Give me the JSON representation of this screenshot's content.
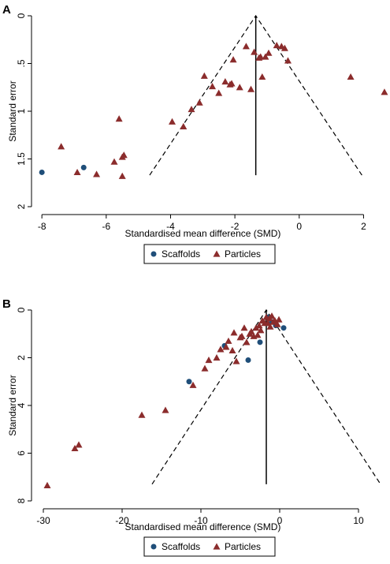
{
  "chart_data": [
    {
      "type": "scatter",
      "panel_label": "A",
      "xlabel": "Standardised mean difference (SMD)",
      "ylabel": "Standard error",
      "xlim": [
        -8.2,
        2.7
      ],
      "ylim": [
        0,
        2
      ],
      "y_inverted": true,
      "x_ticks": [
        -8,
        -6,
        -4,
        -2,
        0,
        2
      ],
      "y_ticks": [
        0,
        0.5,
        1,
        1.5,
        2
      ],
      "y_tick_labels": [
        "0",
        ".5",
        "1",
        "1.5",
        "2"
      ],
      "grid": false,
      "legend_position": "bottom",
      "pooled_estimate": -1.35,
      "funnel": {
        "apex_se": 0,
        "base_se": 1.67,
        "left_x_at_base": -4.65,
        "right_x_at_base": 1.95
      },
      "series": [
        {
          "name": "Scaffolds",
          "color": "#1f4e79",
          "marker": "circle",
          "points": [
            [
              -8.0,
              1.64
            ],
            [
              -6.7,
              1.59
            ]
          ]
        },
        {
          "name": "Particles",
          "color": "#8b2c2c",
          "marker": "triangle",
          "points": [
            [
              -7.4,
              1.37
            ],
            [
              -6.9,
              1.64
            ],
            [
              -6.3,
              1.66
            ],
            [
              -5.75,
              1.53
            ],
            [
              -5.6,
              1.08
            ],
            [
              -5.5,
              1.68
            ],
            [
              -5.45,
              1.46
            ],
            [
              -5.5,
              1.48
            ],
            [
              -3.95,
              1.11
            ],
            [
              -3.6,
              1.16
            ],
            [
              -3.35,
              0.98
            ],
            [
              -3.1,
              0.91
            ],
            [
              -2.95,
              0.63
            ],
            [
              -2.7,
              0.74
            ],
            [
              -2.5,
              0.81
            ],
            [
              -2.3,
              0.69
            ],
            [
              -2.15,
              0.72
            ],
            [
              -2.1,
              0.71
            ],
            [
              -2.05,
              0.46
            ],
            [
              -1.85,
              0.75
            ],
            [
              -1.65,
              0.32
            ],
            [
              -1.5,
              0.77
            ],
            [
              -1.4,
              0.38
            ],
            [
              -1.25,
              0.44
            ],
            [
              -1.2,
              0.43
            ],
            [
              -1.15,
              0.64
            ],
            [
              -1.05,
              0.43
            ],
            [
              -0.95,
              0.39
            ],
            [
              -0.7,
              0.31
            ],
            [
              -0.55,
              0.32
            ],
            [
              -0.45,
              0.34
            ],
            [
              -0.35,
              0.47
            ],
            [
              1.6,
              0.64
            ],
            [
              2.65,
              0.8
            ]
          ]
        }
      ]
    },
    {
      "type": "scatter",
      "panel_label": "B",
      "xlabel": "Standardised mean difference (SMD)",
      "ylabel": "Standard error",
      "xlim": [
        -31,
        13.5
      ],
      "ylim": [
        0,
        8
      ],
      "y_inverted": true,
      "x_ticks": [
        -30,
        -20,
        -10,
        0,
        10
      ],
      "y_ticks": [
        0,
        2,
        4,
        6,
        8
      ],
      "y_tick_labels": [
        "0",
        "2",
        "4",
        "6",
        "8"
      ],
      "grid": false,
      "legend_position": "bottom",
      "pooled_estimate": -1.7,
      "funnel": {
        "apex_se": 0,
        "base_se": 7.3,
        "left_x_at_base": -16.2,
        "right_x_at_base": 12.8
      },
      "series": [
        {
          "name": "Scaffolds",
          "color": "#1f4e79",
          "marker": "circle",
          "points": [
            [
              -11.5,
              3.0
            ],
            [
              -7.0,
              1.5
            ],
            [
              -4.0,
              2.1
            ],
            [
              -2.5,
              1.35
            ],
            [
              -0.5,
              0.65
            ],
            [
              0.5,
              0.75
            ],
            [
              -1.5,
              0.3
            ],
            [
              -1.0,
              0.5
            ]
          ]
        },
        {
          "name": "Particles",
          "color": "#8b2c2c",
          "marker": "triangle",
          "points": [
            [
              -29.5,
              7.35
            ],
            [
              -26.0,
              5.8
            ],
            [
              -25.5,
              5.65
            ],
            [
              -17.5,
              4.4
            ],
            [
              -14.5,
              4.2
            ],
            [
              -11.0,
              3.15
            ],
            [
              -9.5,
              2.45
            ],
            [
              -9.0,
              2.1
            ],
            [
              -8.0,
              2.0
            ],
            [
              -7.5,
              1.65
            ],
            [
              -6.8,
              1.55
            ],
            [
              -6.5,
              1.3
            ],
            [
              -6.0,
              1.7
            ],
            [
              -5.5,
              2.15
            ],
            [
              -5.8,
              0.95
            ],
            [
              -5.0,
              1.15
            ],
            [
              -4.8,
              1.1
            ],
            [
              -4.5,
              0.75
            ],
            [
              -4.2,
              1.35
            ],
            [
              -3.8,
              1.0
            ],
            [
              -3.6,
              0.9
            ],
            [
              -3.3,
              1.1
            ],
            [
              -3.0,
              0.75
            ],
            [
              -2.8,
              1.05
            ],
            [
              -2.6,
              0.65
            ],
            [
              -2.4,
              0.85
            ],
            [
              -2.2,
              0.45
            ],
            [
              -1.9,
              0.55
            ],
            [
              -1.7,
              0.3
            ],
            [
              -1.5,
              0.55
            ],
            [
              -1.3,
              0.35
            ],
            [
              -1.2,
              0.7
            ],
            [
              -1.0,
              0.25
            ],
            [
              -0.8,
              0.5
            ],
            [
              -0.6,
              0.45
            ],
            [
              -0.3,
              0.6
            ],
            [
              -0.1,
              0.4
            ]
          ]
        }
      ]
    }
  ]
}
